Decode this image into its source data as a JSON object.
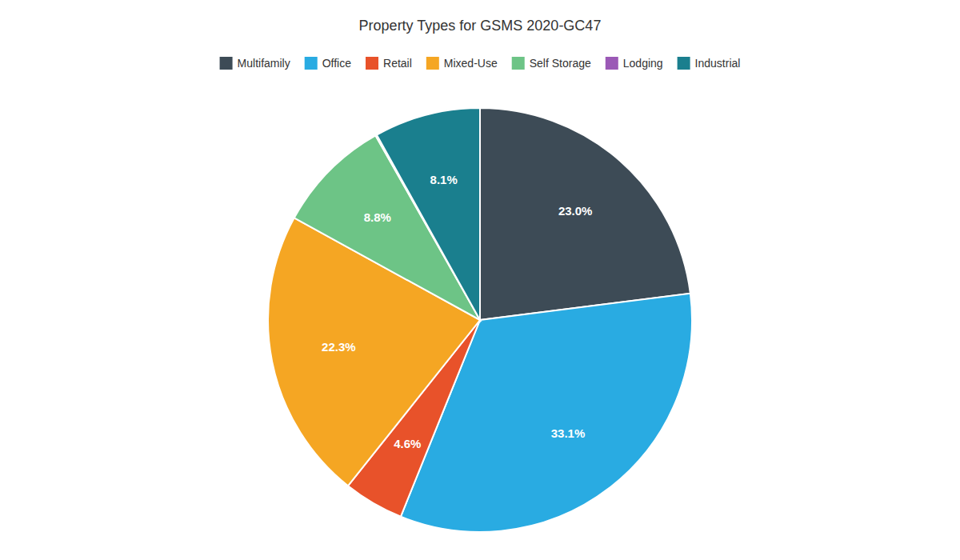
{
  "chart_data": {
    "type": "pie",
    "title": "Property Types for GSMS 2020-GC47",
    "categories": [
      "Multifamily",
      "Office",
      "Retail",
      "Mixed-Use",
      "Self Storage",
      "Lodging",
      "Industrial"
    ],
    "values": [
      23.0,
      33.1,
      4.6,
      22.3,
      8.8,
      0.1,
      8.1
    ],
    "value_labels": [
      "23.0%",
      "33.1%",
      "4.6%",
      "22.3%",
      "8.8%",
      null,
      "8.1%"
    ],
    "colors": [
      "#3d4b56",
      "#29abe2",
      "#e8522a",
      "#f5a623",
      "#6dc486",
      "#9b59b6",
      "#1a7f8e"
    ],
    "data_labels": true,
    "legend": "top"
  }
}
